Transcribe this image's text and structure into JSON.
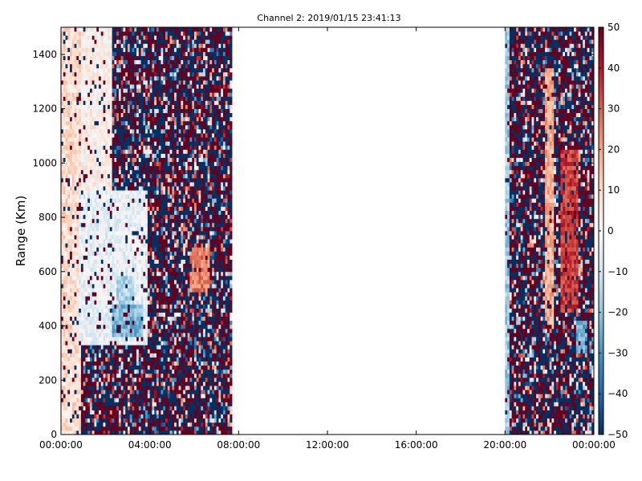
{
  "chart_data": {
    "type": "heatmap",
    "title": "Channel 2: 2019/01/15 23:41:13",
    "xlabel": "",
    "ylabel": "Range (Km)",
    "x_ticks": [
      "00:00:00",
      "04:00:00",
      "08:00:00",
      "12:00:00",
      "16:00:00",
      "20:00:00",
      "00:00:00"
    ],
    "x_tick_hours": [
      0,
      4,
      8,
      12,
      16,
      20,
      24
    ],
    "xlim_hours": [
      0,
      24
    ],
    "y_ticks": [
      0,
      200,
      400,
      600,
      800,
      1000,
      1200,
      1400
    ],
    "ylim": [
      0,
      1500
    ],
    "colorbar": {
      "ticks": [
        50,
        40,
        30,
        20,
        10,
        0,
        -10,
        -20,
        -30,
        -40,
        -50
      ],
      "range": [
        -50,
        50
      ],
      "colormap": "RdBu_r"
    },
    "data_segments_hours": [
      [
        0,
        7.7
      ],
      [
        20,
        24
      ]
    ],
    "range_gate_km": 15,
    "time_step_hours": 0.1,
    "features": [
      {
        "t0": 0.0,
        "t1": 0.9,
        "r0": 0,
        "r1": 1500,
        "value": 8
      },
      {
        "t0": 0.9,
        "t1": 2.3,
        "r0": 900,
        "r1": 1500,
        "value": 3
      },
      {
        "t0": 0.8,
        "t1": 3.9,
        "r0": 330,
        "r1": 900,
        "value": -4
      },
      {
        "t0": 2.3,
        "t1": 3.7,
        "r0": 360,
        "r1": 480,
        "value": -22
      },
      {
        "t0": 2.5,
        "t1": 3.3,
        "r0": 480,
        "r1": 580,
        "value": -15
      },
      {
        "t0": 5.8,
        "t1": 6.7,
        "r0": 520,
        "r1": 680,
        "value": 25
      },
      {
        "t0": 20.0,
        "t1": 20.2,
        "r0": 0,
        "r1": 1500,
        "value": -18
      },
      {
        "t0": 21.8,
        "t1": 22.2,
        "r0": 400,
        "r1": 1350,
        "value": 18
      },
      {
        "t0": 22.5,
        "t1": 23.3,
        "r0": 450,
        "r1": 1050,
        "value": 35
      },
      {
        "t0": 23.2,
        "t1": 23.7,
        "r0": 300,
        "r1": 420,
        "value": -25
      }
    ]
  }
}
